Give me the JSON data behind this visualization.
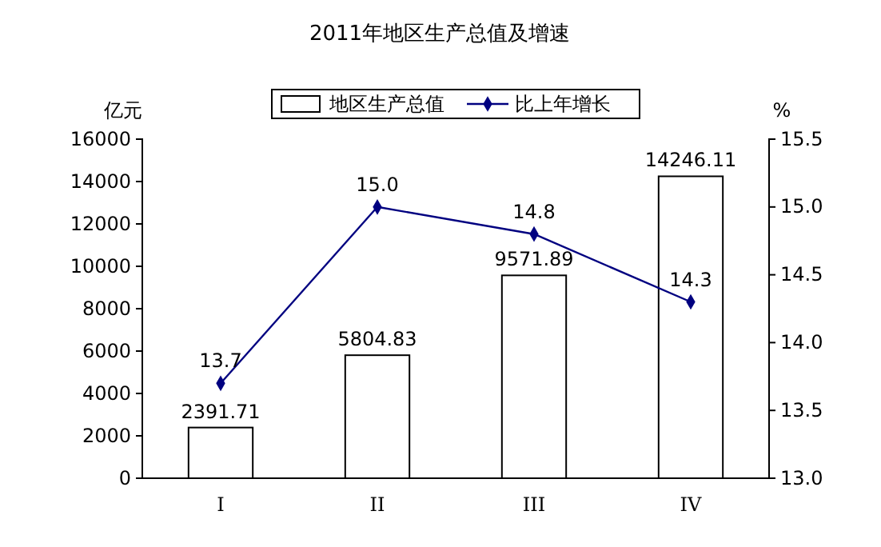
{
  "chart_data": {
    "type": "bar",
    "title": "2011年地区生产总值及增速",
    "ylabel": "亿元",
    "y2label": "%",
    "categories": [
      "I",
      "II",
      "III",
      "IV"
    ],
    "series": [
      {
        "name": "地区生产总值",
        "color": "#ffffff",
        "values": [
          2391.71,
          5804.83,
          9571.89,
          14246.11
        ]
      },
      {
        "name": "比上年增长",
        "type": "line",
        "axis": "y2",
        "color": "#000080",
        "values": [
          13.7,
          15.0,
          14.8,
          14.3
        ]
      }
    ],
    "ylim": [
      0,
      16000
    ],
    "yticks": [
      0,
      2000,
      4000,
      6000,
      8000,
      10000,
      12000,
      14000,
      16000
    ],
    "y2lim": [
      13.0,
      15.5
    ],
    "y2ticks": [
      {
        "value": 13.0,
        "label": "13.0"
      },
      {
        "value": 13.5,
        "label": "13.5"
      },
      {
        "value": 14.0,
        "label": "14.0"
      },
      {
        "value": 14.5,
        "label": "14.5"
      },
      {
        "value": 15.0,
        "label": "15.0"
      },
      {
        "value": 15.5,
        "label": "15.5"
      }
    ],
    "value_labels": [
      [
        "2391.71",
        "5804.83",
        "9571.89",
        "14246.11"
      ],
      [
        "13.7",
        "15.0",
        "14.8",
        "14.3"
      ]
    ],
    "legend": "top",
    "marker": "diamond",
    "grid": false
  }
}
